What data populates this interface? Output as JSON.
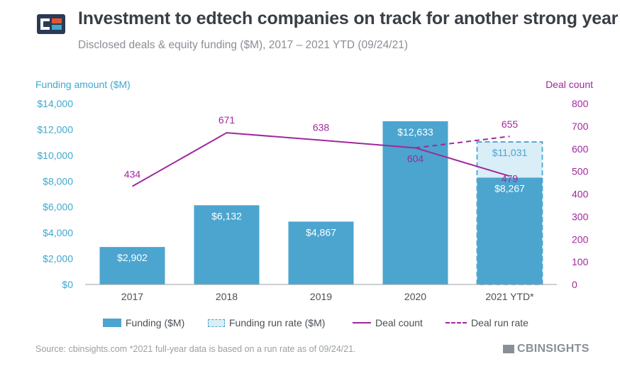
{
  "header": {
    "title": "Investment to edtech companies on track for another strong year",
    "subtitle": "Disclosed deals & equity funding ($M), 2017 – 2021 YTD (09/24/21)"
  },
  "footer": {
    "source": "Source: cbinsights.com  *2021 full-year data is based on a run rate as of 09/24/21.",
    "brand": "CBINSIGHTS"
  },
  "colors": {
    "funding": "#4ba5cf",
    "run_rate_fill": "#d9eef7",
    "deal": "#a1289c",
    "left_axis": "#3fa8cd"
  },
  "chart_data": {
    "type": "bar",
    "categories": [
      "2017",
      "2018",
      "2019",
      "2020",
      "2021 YTD*"
    ],
    "left_axis": {
      "label": "Funding amount ($M)",
      "ylim": [
        0,
        14000
      ],
      "ticks": [
        0,
        2000,
        4000,
        6000,
        8000,
        10000,
        12000,
        14000
      ],
      "tick_labels": [
        "$0",
        "$2,000",
        "$4,000",
        "$6,000",
        "$8,000",
        "$10,000",
        "$12,000",
        "$14,000"
      ]
    },
    "right_axis": {
      "label": "Deal count",
      "ylim": [
        0,
        800
      ],
      "ticks": [
        0,
        100,
        200,
        300,
        400,
        500,
        600,
        700,
        800
      ],
      "tick_labels": [
        "0",
        "100",
        "200",
        "300",
        "400",
        "500",
        "600",
        "700",
        "800"
      ]
    },
    "series": [
      {
        "name": "Funding ($M)",
        "kind": "bar",
        "values": [
          2902,
          6132,
          4867,
          12633,
          8267
        ],
        "labels": [
          "$2,902",
          "$6,132",
          "$4,867",
          "$12,633",
          "$8,267"
        ]
      },
      {
        "name": "Funding run rate ($M)",
        "kind": "bar-dashed",
        "category": "2021 YTD*",
        "value": 11031,
        "label": "$11,031"
      },
      {
        "name": "Deal count",
        "kind": "line",
        "values": [
          434,
          671,
          638,
          604,
          479
        ],
        "labels": [
          "434",
          "671",
          "638",
          "604",
          "479"
        ]
      },
      {
        "name": "Deal run rate",
        "kind": "line-dashed",
        "from": {
          "category": "2020",
          "value": 604
        },
        "to": {
          "category": "2021 YTD*",
          "value": 655
        },
        "label": "655"
      }
    ],
    "grid": false,
    "legend_position": "bottom"
  }
}
